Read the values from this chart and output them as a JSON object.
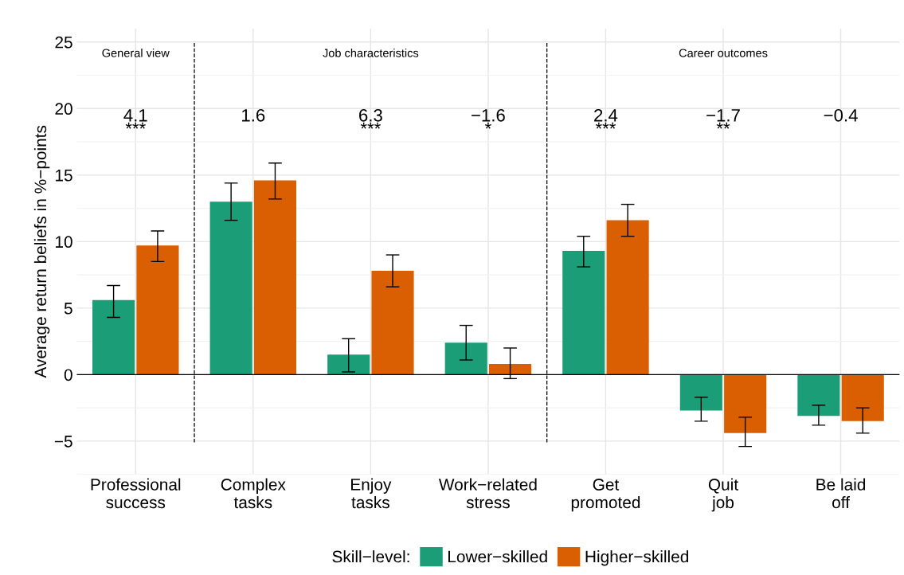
{
  "chart_data": {
    "type": "bar",
    "ylabel": "Average return beliefs in %−points",
    "legend_title": "Skill−level:",
    "legend": "bottom",
    "grid": true,
    "categories": [
      "Professional\nsuccess",
      "Complex\ntasks",
      "Enjoy\ntasks",
      "Work−related\nstress",
      "Get\npromoted",
      "Quit\njob",
      "Be laid\noff"
    ],
    "series": [
      {
        "name": "Lower−skilled",
        "color": "#1b9e77",
        "values": [
          5.6,
          13.0,
          1.5,
          2.4,
          9.3,
          -2.7,
          -3.1
        ],
        "errors": [
          [
            4.3,
            6.7
          ],
          [
            11.6,
            14.4
          ],
          [
            0.2,
            2.7
          ],
          [
            1.1,
            3.7
          ],
          [
            8.1,
            10.4
          ],
          [
            -3.5,
            -1.7
          ],
          [
            -3.8,
            -2.3
          ]
        ]
      },
      {
        "name": "Higher−skilled",
        "color": "#d95f02",
        "values": [
          9.7,
          14.6,
          7.8,
          0.8,
          11.6,
          -4.4,
          -3.5
        ],
        "errors": [
          [
            8.5,
            10.8
          ],
          [
            13.2,
            15.9
          ],
          [
            6.6,
            9.0
          ],
          [
            -0.3,
            2.0
          ],
          [
            10.4,
            12.8
          ],
          [
            -5.4,
            -3.2
          ],
          [
            -4.4,
            -2.5
          ]
        ]
      }
    ],
    "ylim": [
      -7.5,
      26
    ],
    "yticks": [
      {
        "value": -5,
        "label": "−5"
      },
      0,
      5,
      10,
      15,
      20,
      25
    ],
    "ref_lines": [
      {
        "axis": "y",
        "value": 0,
        "color": "#000000",
        "line_style": "solid"
      }
    ],
    "annotations": [
      "General view",
      "Job characteristics",
      "Career outcomes",
      "4.1\n***",
      "1.6",
      "6.3\n***",
      "−1.6\n*",
      "2.4\n***",
      "−1.7\n**",
      "−0.4"
    ]
  }
}
